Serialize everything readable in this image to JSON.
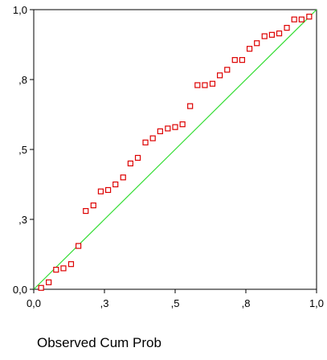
{
  "chart_data": {
    "type": "scatter",
    "xlabel": "Observed Cum Prob",
    "ylabel": "",
    "xlim": [
      0,
      1
    ],
    "ylim": [
      0,
      1
    ],
    "x_ticks": [
      0,
      0.25,
      0.5,
      0.75,
      1
    ],
    "x_tick_labels": [
      "0,0",
      ",3",
      ",5",
      ",8",
      "1,0"
    ],
    "y_ticks": [
      0,
      0.25,
      0.5,
      0.75,
      1
    ],
    "y_tick_labels": [
      "0,0",
      ",3",
      ",5",
      ",8",
      "1,0"
    ],
    "grid": false,
    "reference_line": {
      "from": [
        0,
        0
      ],
      "to": [
        1,
        1
      ],
      "color": "#33dd33"
    },
    "marker_color": "#dd0000",
    "series": [
      {
        "x": [
          0.026,
          0.053,
          0.079,
          0.105,
          0.132,
          0.158,
          0.184,
          0.211,
          0.237,
          0.263,
          0.289,
          0.316,
          0.342,
          0.368,
          0.395,
          0.421,
          0.447,
          0.474,
          0.5,
          0.526,
          0.553,
          0.579,
          0.605,
          0.632,
          0.658,
          0.684,
          0.711,
          0.737,
          0.763,
          0.789,
          0.816,
          0.842,
          0.868,
          0.895,
          0.921,
          0.947,
          0.974
        ],
        "y": [
          0.005,
          0.025,
          0.07,
          0.075,
          0.09,
          0.155,
          0.28,
          0.3,
          0.35,
          0.355,
          0.375,
          0.4,
          0.45,
          0.47,
          0.525,
          0.54,
          0.565,
          0.575,
          0.58,
          0.59,
          0.655,
          0.73,
          0.73,
          0.735,
          0.765,
          0.785,
          0.82,
          0.82,
          0.86,
          0.88,
          0.905,
          0.91,
          0.915,
          0.935,
          0.965,
          0.965,
          0.975
        ]
      }
    ]
  }
}
